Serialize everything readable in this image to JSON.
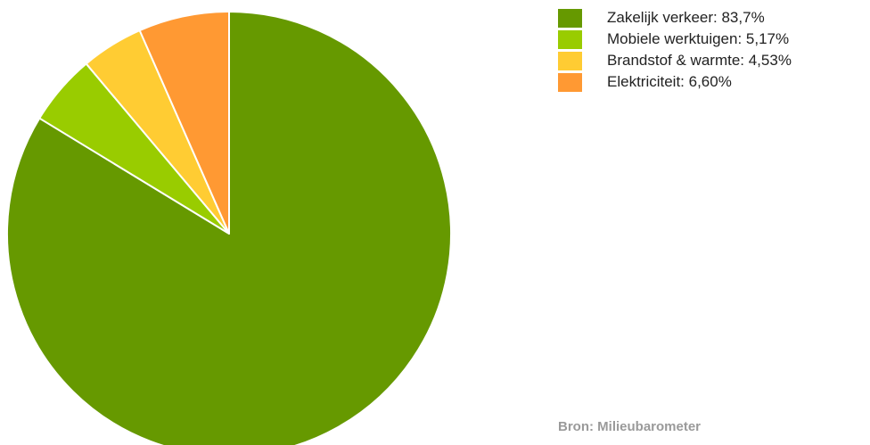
{
  "chart_data": {
    "type": "pie",
    "title": "",
    "slices": [
      {
        "label": "Zakelijk verkeer",
        "value": 83.7,
        "value_text": "83,7%",
        "color": "#669900"
      },
      {
        "label": "Mobiele werktuigen",
        "value": 5.17,
        "value_text": "5,17%",
        "color": "#99cc00"
      },
      {
        "label": "Brandstof & warmte",
        "value": 4.53,
        "value_text": "4,53%",
        "color": "#ffcc33"
      },
      {
        "label": "Elektriciteit",
        "value": 6.6,
        "value_text": "6,60%",
        "color": "#ff9933"
      }
    ],
    "start_angle_deg": 0,
    "direction": "clockwise",
    "legend_placement": "top-right",
    "slice_labels_on_chart": false
  },
  "source": {
    "text": "Bron: Milieubarometer"
  }
}
